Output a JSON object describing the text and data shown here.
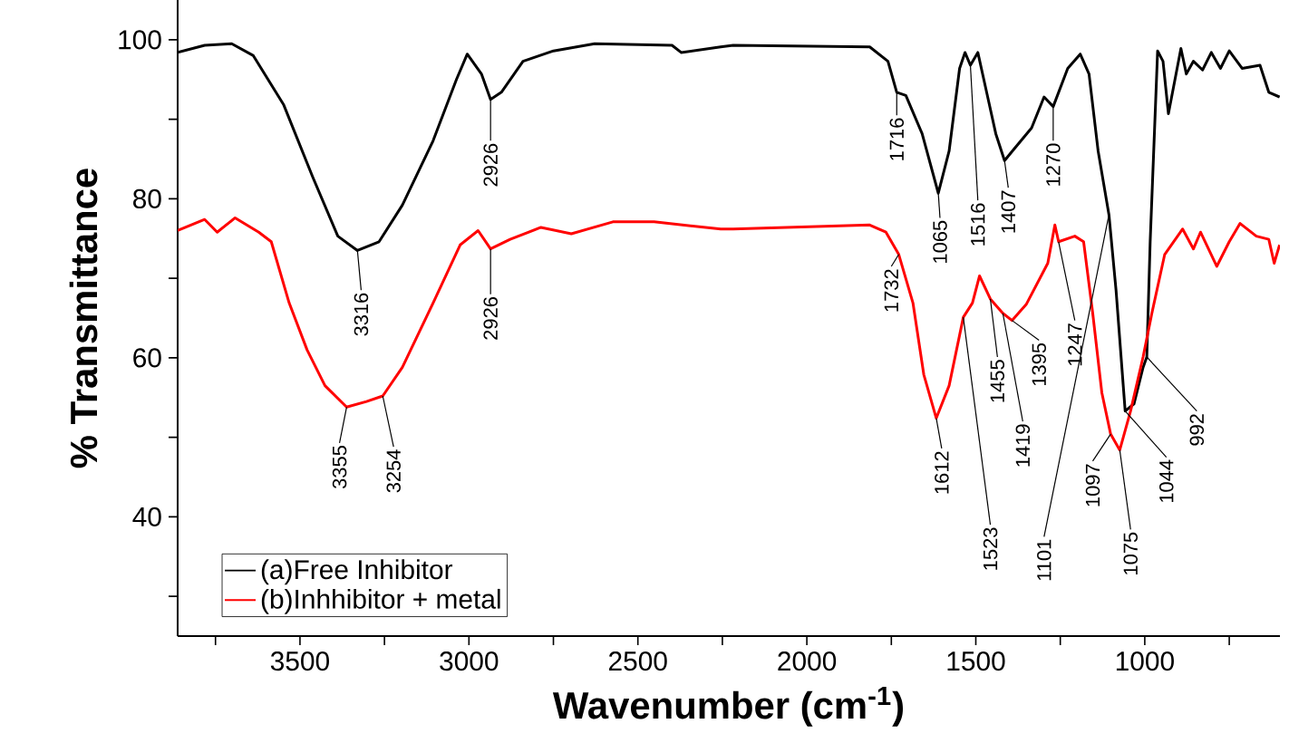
{
  "chart_data": {
    "type": "line",
    "xlabel": "Wavenumber (cm$^{-1}$)",
    "ylabel": "% Transmittance",
    "xlim": [
      3862,
      600
    ],
    "ylim": [
      25,
      105
    ],
    "xticks": [
      {
        "value": 3750,
        "label": null
      },
      3500,
      {
        "value": 3250,
        "label": null
      },
      3000,
      {
        "value": 2750,
        "label": null
      },
      2500,
      {
        "value": 2250,
        "label": null
      },
      2000,
      {
        "value": 1750,
        "label": null
      },
      1500,
      {
        "value": 1250,
        "label": null
      },
      1000,
      {
        "value": 750,
        "label": null
      }
    ],
    "yticks": [
      {
        "value": 30,
        "label": null
      },
      40,
      {
        "value": 50,
        "label": null
      },
      60,
      {
        "value": 70,
        "label": null
      },
      80,
      {
        "value": 90,
        "label": null
      },
      100
    ],
    "legend": "bottom left",
    "series": [
      {
        "name": "(a)Free Inhibitor",
        "color": "#000000",
        "x": [
          3862,
          3782,
          3702,
          3638,
          3548,
          3463,
          3388,
          3330,
          3266,
          3197,
          3106,
          3037,
          3005,
          2963,
          2936,
          2904,
          2840,
          2750,
          2628,
          2399,
          2372,
          2255,
          2218,
          1814,
          1760,
          1734,
          1707,
          1659,
          1611,
          1579,
          1548,
          1532,
          1516,
          1494,
          1468,
          1441,
          1415,
          1388,
          1335,
          1298,
          1271,
          1228,
          1191,
          1165,
          1138,
          1106,
          1085,
          1058,
          1032,
          1005,
          994,
          984,
          962,
          946,
          930,
          893,
          877,
          856,
          829,
          803,
          776,
          750,
          712,
          659,
          633,
          601
        ],
        "values": [
          98.4,
          99.3,
          99.5,
          98,
          91.8,
          82.8,
          75.3,
          73.5,
          74.6,
          79.2,
          87.3,
          95,
          98.2,
          95.7,
          92.5,
          93.4,
          97.3,
          98.6,
          99.5,
          99.3,
          98.4,
          99.1,
          99.3,
          99.1,
          97.3,
          93.4,
          93,
          88.2,
          80.7,
          86,
          96.4,
          98.4,
          96.8,
          98.4,
          93.4,
          88.2,
          84.8,
          86.2,
          88.9,
          92.8,
          91.6,
          96.4,
          98.2,
          95.7,
          86,
          78,
          68.5,
          53.3,
          54.2,
          58.8,
          60.1,
          74.6,
          98.6,
          97.3,
          90.7,
          98.9,
          95.7,
          97.3,
          96.2,
          98.4,
          96.4,
          98.6,
          96.4,
          96.8,
          93.4,
          92.8
        ]
      },
      {
        "name": "(b)Inhhibitor + metal",
        "color": "#ff0000",
        "x": [
          3862,
          3782,
          3745,
          3692,
          3622,
          3585,
          3532,
          3479,
          3426,
          3362,
          3303,
          3255,
          3197,
          3106,
          3026,
          2973,
          2936,
          2878,
          2787,
          2697,
          2574,
          2452,
          2255,
          2218,
          1814,
          1766,
          1728,
          1686,
          1654,
          1617,
          1579,
          1537,
          1510,
          1489,
          1457,
          1420,
          1393,
          1351,
          1287,
          1266,
          1255,
          1207,
          1181,
          1154,
          1127,
          1101,
          1074,
          1042,
          1005,
          979,
          941,
          888,
          856,
          835,
          787,
          750,
          718,
          670,
          633,
          617,
          601
        ],
        "values": [
          76,
          77.4,
          75.8,
          77.6,
          75.8,
          74.6,
          66.9,
          61,
          56.5,
          53.8,
          54.5,
          55.2,
          58.8,
          66.9,
          74.2,
          76,
          73.7,
          74.9,
          76.4,
          75.6,
          77.1,
          77.1,
          76.2,
          76.2,
          76.7,
          75.8,
          73,
          66.9,
          57.9,
          52.4,
          56.5,
          65.1,
          66.9,
          70.3,
          67.4,
          65.6,
          64.7,
          66.7,
          71.9,
          76.7,
          74.6,
          75.3,
          74.6,
          65.6,
          55.6,
          50.4,
          48.4,
          53.3,
          60.1,
          65.6,
          73,
          76.2,
          73.7,
          75.8,
          71.5,
          74.6,
          76.9,
          75.3,
          74.9,
          71.9,
          74.2
        ]
      }
    ],
    "annotations": [
      {
        "text": "3316",
        "x": 3330,
        "y": 73.5
      },
      {
        "text": "2926",
        "x": 2936,
        "y": 92.5
      },
      {
        "text": "3355",
        "x": 3362,
        "y": 53.8
      },
      {
        "text": "3254",
        "x": 3255,
        "y": 55.2
      },
      {
        "text": "2926",
        "x": 2936,
        "y": 73.7
      },
      {
        "text": "1716",
        "x": 1734,
        "y": 93.4
      },
      {
        "text": "1065",
        "x": 1611,
        "y": 80.7
      },
      {
        "text": "1516",
        "x": 1516,
        "y": 96.8
      },
      {
        "text": "1407",
        "x": 1415,
        "y": 84.8
      },
      {
        "text": "1270",
        "x": 1271,
        "y": 91.6
      },
      {
        "text": "1732",
        "x": 1728,
        "y": 73
      },
      {
        "text": "1612",
        "x": 1617,
        "y": 52.4
      },
      {
        "text": "1523",
        "x": 1537,
        "y": 65.1
      },
      {
        "text": "1455",
        "x": 1457,
        "y": 67.4
      },
      {
        "text": "1419",
        "x": 1420,
        "y": 65.6
      },
      {
        "text": "1395",
        "x": 1393,
        "y": 64.7
      },
      {
        "text": "1247",
        "x": 1255,
        "y": 74.6
      },
      {
        "text": "1101",
        "x": 1106,
        "y": 78
      },
      {
        "text": "1097",
        "x": 1101,
        "y": 50.4
      },
      {
        "text": "1075",
        "x": 1074,
        "y": 48.4
      },
      {
        "text": "1044",
        "x": 1058,
        "y": 53.3
      },
      {
        "text": "992",
        "x": 994,
        "y": 60.1
      }
    ]
  }
}
